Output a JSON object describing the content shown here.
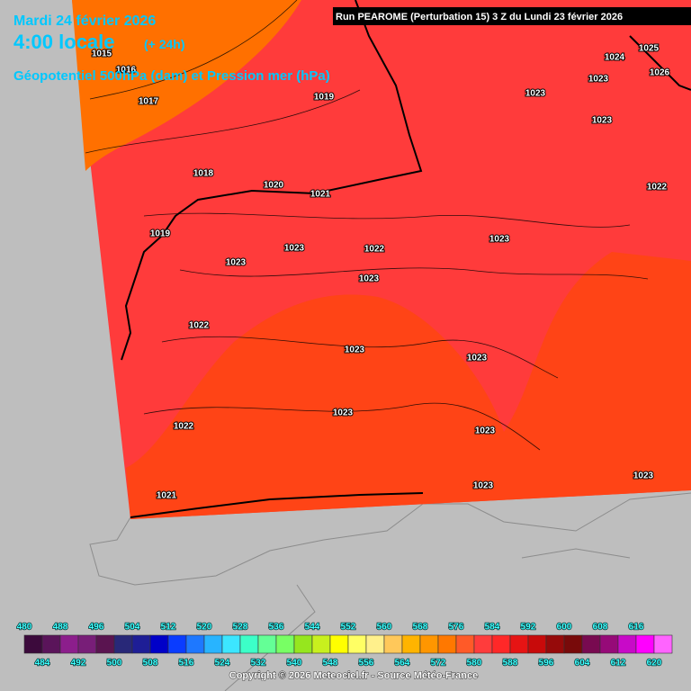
{
  "header": {
    "date": "Mardi 24 février 2026",
    "time": "4:00 locale",
    "lead": "(+ 24h)",
    "field": "Géopotentiel 500hPa (dam) et Pression mer (hPa)",
    "run": "Run PEAROME (Perturbation 15) 3 Z du Lundi 23 février 2026"
  },
  "pressure_labels": [
    "1015",
    "1016",
    "1017",
    "1019",
    "1023",
    "1024",
    "1025",
    "1026",
    "1023",
    "1023",
    "1018",
    "1020",
    "1021",
    "1022",
    "1019",
    "1023",
    "1022",
    "1023",
    "1023",
    "1023",
    "1022",
    "1023",
    "1023",
    "1022",
    "1023",
    "1023",
    "1021",
    "1023",
    "1023"
  ],
  "legend": {
    "top_labels": [
      480,
      488,
      496,
      504,
      512,
      520,
      528,
      536,
      544,
      552,
      560,
      568,
      576,
      584,
      592,
      600,
      608,
      616
    ],
    "bottom_labels": [
      484,
      492,
      500,
      508,
      516,
      524,
      532,
      540,
      548,
      556,
      564,
      572,
      580,
      588,
      596,
      604,
      612,
      620
    ],
    "colors": [
      "#3c0a3c",
      "#5a145a",
      "#8c1e8c",
      "#781e78",
      "#5a1450",
      "#282878",
      "#1e1e96",
      "#0000c8",
      "#0a3cff",
      "#1e78ff",
      "#28b4ff",
      "#3ce6ff",
      "#3cffc8",
      "#64ff96",
      "#78ff64",
      "#96e61e",
      "#c8f01e",
      "#ffff00",
      "#ffff64",
      "#fff08c",
      "#ffc85a",
      "#ffb400",
      "#ff9600",
      "#ff7800",
      "#ff5a28",
      "#ff3c3c",
      "#ff2828",
      "#e61414",
      "#c80a0a",
      "#960a0a",
      "#780a0a",
      "#780a50",
      "#960a78",
      "#c80ac8",
      "#ff00ff",
      "#ff64ff"
    ]
  },
  "footer": {
    "copyright": "Copyright © 2026 Meteociel.fr - Source Météo-France"
  }
}
